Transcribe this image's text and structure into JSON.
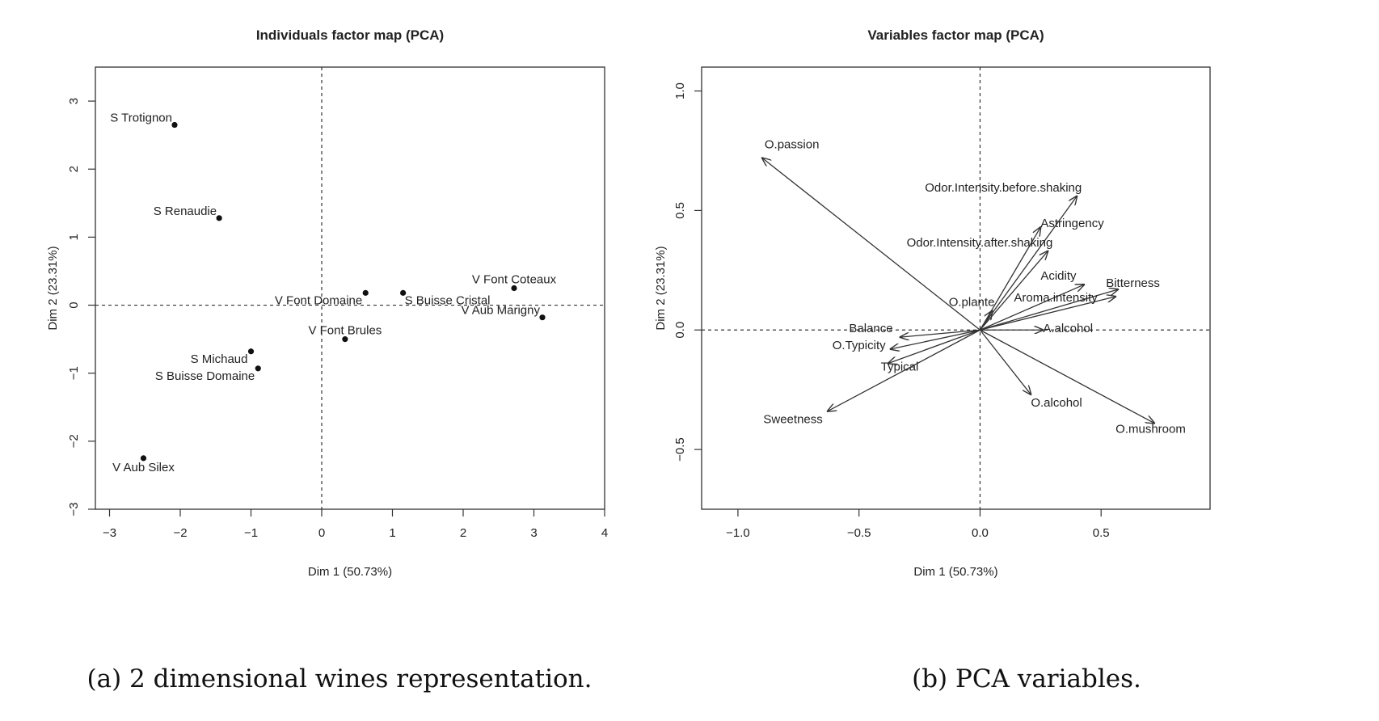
{
  "captions": {
    "a": "(a) 2 dimensional wines representation.",
    "b": "(b) PCA variables."
  },
  "chart_data": [
    {
      "type": "scatter",
      "title": "Individuals factor map (PCA)",
      "xlabel": "Dim 1 (50.73%)",
      "ylabel": "Dim 2 (23.31%)",
      "xlim": [
        -3.2,
        4
      ],
      "ylim": [
        -3,
        3.5
      ],
      "xticks": [
        -3,
        -2,
        -1,
        0,
        1,
        2,
        3,
        4
      ],
      "yticks": [
        -3,
        -2,
        -1,
        0,
        1,
        2,
        3
      ],
      "reference_lines": {
        "x": 0,
        "y": 0,
        "style": "dotted"
      },
      "points": [
        {
          "label": "S Trotignon",
          "x": -2.08,
          "y": 2.65,
          "label_pos": "left"
        },
        {
          "label": "S Renaudie",
          "x": -1.45,
          "y": 1.28,
          "label_pos": "left"
        },
        {
          "label": "V Font Domaine",
          "x": 0.62,
          "y": 0.18,
          "label_pos": "left-below"
        },
        {
          "label": "S Buisse Cristal",
          "x": 1.15,
          "y": 0.18,
          "label_pos": "right-below"
        },
        {
          "label": "V Font Coteaux",
          "x": 2.72,
          "y": 0.25,
          "label_pos": "above"
        },
        {
          "label": "V Aub Marigny",
          "x": 3.12,
          "y": -0.18,
          "label_pos": "left"
        },
        {
          "label": "V Font Brules",
          "x": 0.33,
          "y": -0.5,
          "label_pos": "above"
        },
        {
          "label": "S Michaud",
          "x": -1.0,
          "y": -0.68,
          "label_pos": "left-below"
        },
        {
          "label": "S Buisse Domaine",
          "x": -0.9,
          "y": -0.93,
          "label_pos": "left-below"
        },
        {
          "label": "V Aub Silex",
          "x": -2.52,
          "y": -2.25,
          "label_pos": "below"
        }
      ]
    },
    {
      "type": "vectors",
      "title": "Variables factor map (PCA)",
      "xlabel": "Dim 1 (50.73%)",
      "ylabel": "Dim 2 (23.31%)",
      "xlim": [
        -1.15,
        0.95
      ],
      "ylim": [
        -0.75,
        1.1
      ],
      "xticks": [
        -1.0,
        -0.5,
        0.0,
        0.5
      ],
      "xtick_labels": [
        "−1.0",
        "−0.5",
        "0.0",
        "0.5"
      ],
      "yticks": [
        -0.5,
        0.0,
        0.5,
        1.0
      ],
      "ytick_labels": [
        "−0.5",
        "0.0",
        "0.5",
        "1.0"
      ],
      "reference_lines": {
        "x": 0,
        "y": 0,
        "style": "dotted"
      },
      "vectors": [
        {
          "label": "O.passion",
          "x": -0.9,
          "y": 0.72,
          "lx": -0.89,
          "ly": 0.76,
          "anchor": "start"
        },
        {
          "label": "Odor.Intensity.before.shaking",
          "x": 0.4,
          "y": 0.56,
          "lx": 0.42,
          "ly": 0.58,
          "anchor": "end"
        },
        {
          "label": "Astringency",
          "x": 0.25,
          "y": 0.43,
          "lx": 0.25,
          "ly": 0.43,
          "anchor": "start"
        },
        {
          "label": "Odor.Intensity.after.shaking",
          "x": 0.28,
          "y": 0.33,
          "lx": 0.3,
          "ly": 0.35,
          "anchor": "end"
        },
        {
          "label": "Acidity",
          "x": 0.43,
          "y": 0.19,
          "lx": 0.25,
          "ly": 0.21,
          "anchor": "start"
        },
        {
          "label": "Bitterness",
          "x": 0.57,
          "y": 0.17,
          "lx": 0.52,
          "ly": 0.18,
          "anchor": "start"
        },
        {
          "label": "Aroma.intensity",
          "x": 0.56,
          "y": 0.14,
          "lx": 0.14,
          "ly": 0.12,
          "anchor": "start"
        },
        {
          "label": "O.plante",
          "x": 0.05,
          "y": 0.08,
          "lx": 0.06,
          "ly": 0.1,
          "anchor": "end"
        },
        {
          "label": "A.alcohol",
          "x": 0.26,
          "y": 0.0,
          "lx": 0.26,
          "ly": -0.01,
          "anchor": "start"
        },
        {
          "label": "Balance",
          "x": -0.33,
          "y": -0.03,
          "lx": -0.36,
          "ly": -0.01,
          "anchor": "end"
        },
        {
          "label": "O.Typicity",
          "x": -0.37,
          "y": -0.08,
          "lx": -0.39,
          "ly": -0.08,
          "anchor": "end"
        },
        {
          "label": "Typical",
          "x": -0.38,
          "y": -0.14,
          "lx": -0.41,
          "ly": -0.17,
          "anchor": "start"
        },
        {
          "label": "Sweetness",
          "x": -0.63,
          "y": -0.34,
          "lx": -0.65,
          "ly": -0.39,
          "anchor": "end"
        },
        {
          "label": "O.alcohol",
          "x": 0.21,
          "y": -0.27,
          "lx": 0.21,
          "ly": -0.32,
          "anchor": "start"
        },
        {
          "label": "O.mushroom",
          "x": 0.72,
          "y": -0.39,
          "lx": 0.56,
          "ly": -0.43,
          "anchor": "start"
        }
      ]
    }
  ]
}
